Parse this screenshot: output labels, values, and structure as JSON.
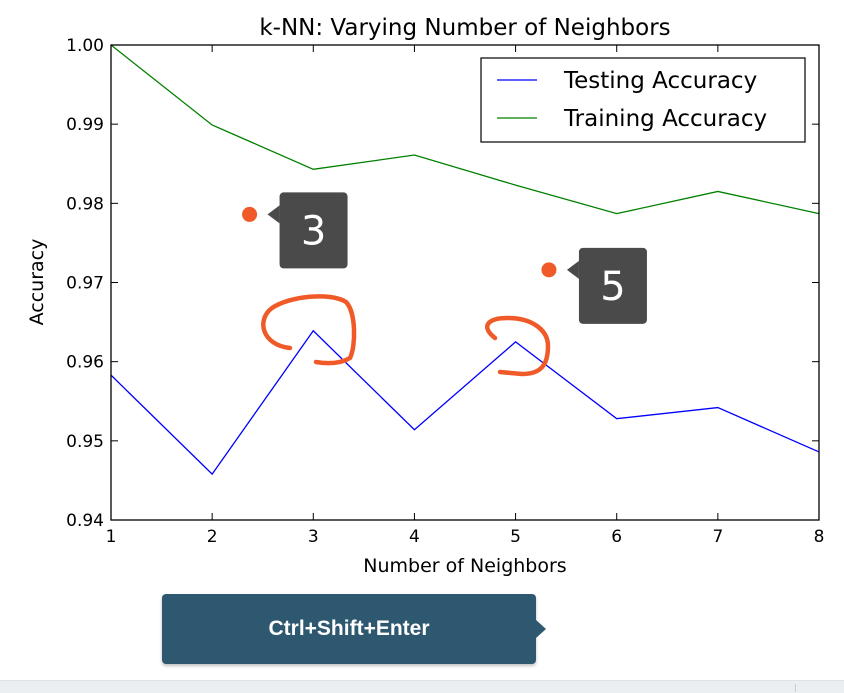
{
  "chart_data": {
    "type": "line",
    "title": "k-NN: Varying Number of Neighbors",
    "xlabel": "Number of Neighbors",
    "ylabel": "Accuracy",
    "x": [
      1,
      2,
      3,
      4,
      5,
      6,
      7,
      8
    ],
    "xlim": [
      1,
      8
    ],
    "ylim": [
      0.94,
      1.0
    ],
    "xticks": [
      "1",
      "2",
      "3",
      "4",
      "5",
      "6",
      "7",
      "8"
    ],
    "yticks": [
      "0.94",
      "0.95",
      "0.96",
      "0.97",
      "0.98",
      "0.99",
      "1.00"
    ],
    "grid": false,
    "legend_position": "top-right",
    "series": [
      {
        "name": "Testing Accuracy",
        "color": "#0000ff",
        "values": [
          0.9583,
          0.9458,
          0.9639,
          0.9514,
          0.9625,
          0.9528,
          0.9542,
          0.9486
        ]
      },
      {
        "name": "Training Accuracy",
        "color": "#008000",
        "values": [
          1.0,
          0.9899,
          0.9843,
          0.9861,
          0.9823,
          0.9787,
          0.9815,
          0.9787
        ]
      }
    ],
    "annotations": [
      {
        "label": "3",
        "marker_color": "#f05a28",
        "box_color": "#4a4a4a",
        "x": 2.37,
        "y": 0.9786
      },
      {
        "label": "5",
        "marker_color": "#f05a28",
        "box_color": "#4a4a4a",
        "x": 5.33,
        "y": 0.9716
      }
    ],
    "hand_drawn_marks": [
      {
        "description": "orange scribble bracket around peak",
        "near_x": 3,
        "color": "#f05a28"
      },
      {
        "description": "orange scribble bracket around peak",
        "near_x": 5,
        "color": "#f05a28"
      }
    ]
  },
  "toolbar": {
    "shortcut_label": "Ctrl+Shift+Enter"
  }
}
